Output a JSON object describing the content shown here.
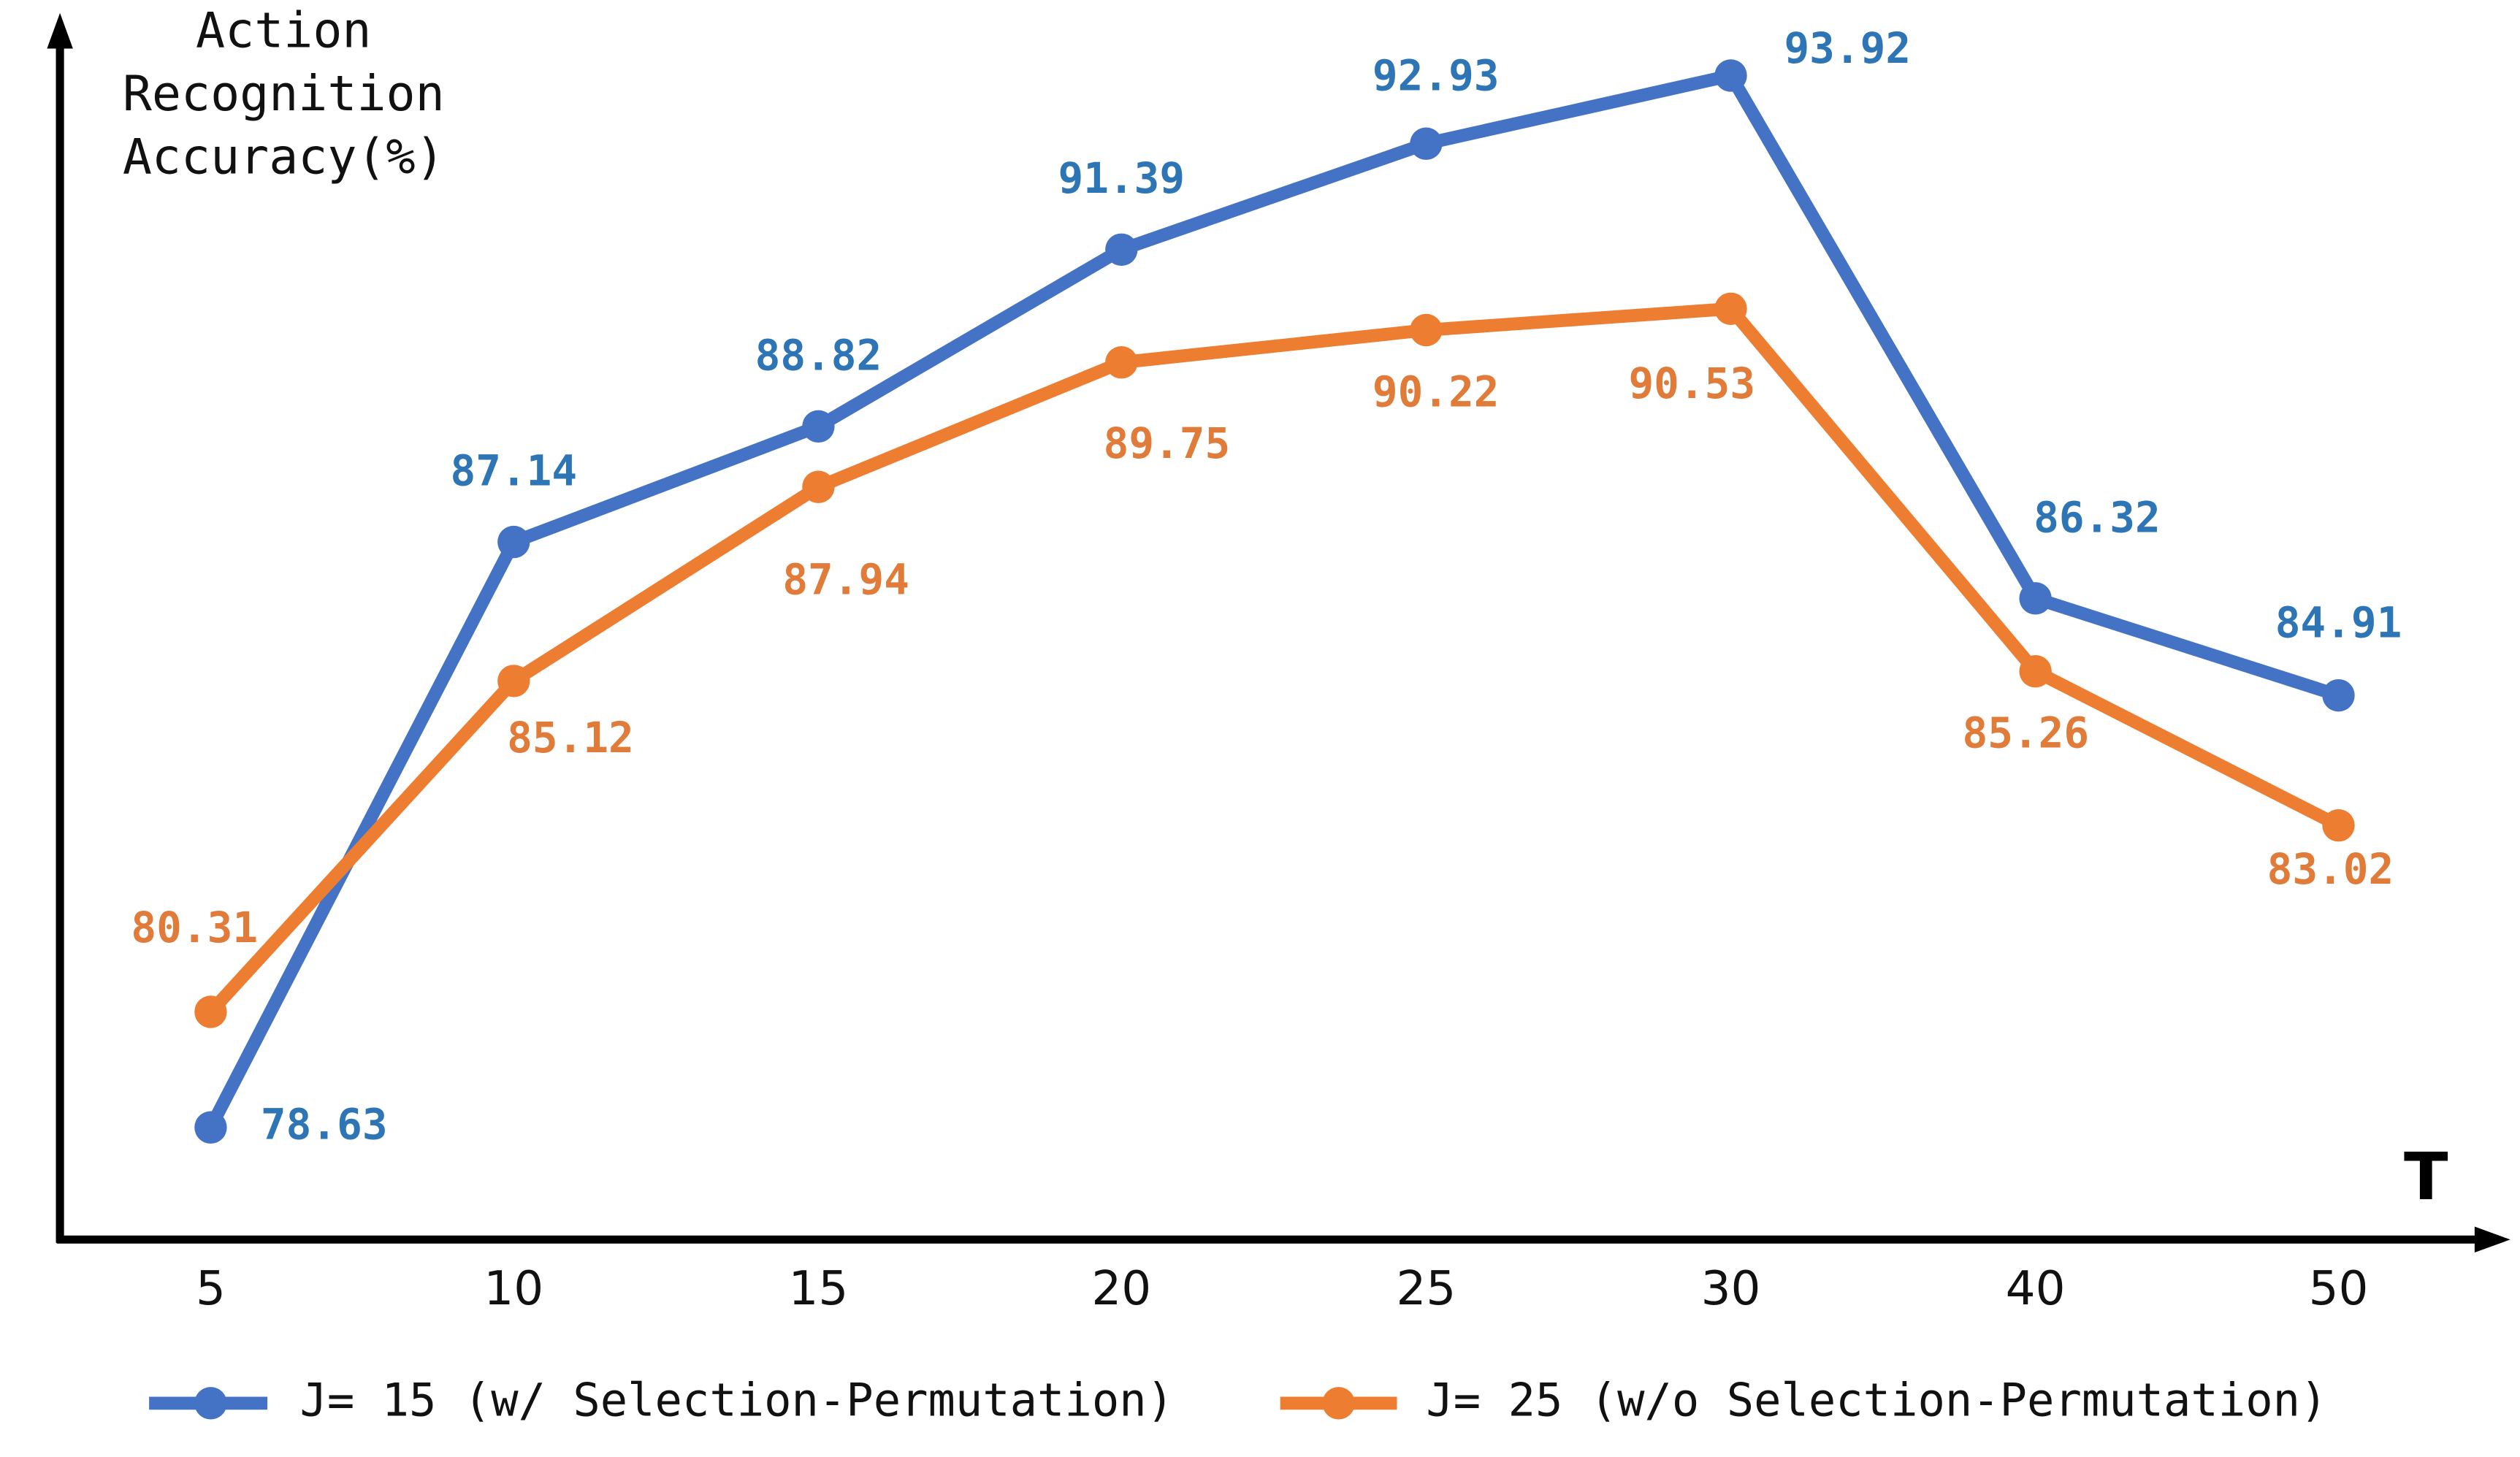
{
  "chart_data": {
    "type": "line",
    "y_label": "Action Recognition Accuracy(%)",
    "x_label": "T",
    "categories": [
      "5",
      "10",
      "15",
      "20",
      "25",
      "30",
      "40",
      "50"
    ],
    "series": [
      {
        "name": "J= 15 (w/ Selection-Permutation)",
        "color": "#4472c4",
        "label_color": "#2e75b6",
        "values": [
          78.63,
          87.14,
          88.82,
          91.39,
          92.93,
          93.92,
          86.32,
          84.91
        ]
      },
      {
        "name": "J= 25 (w/o Selection-Permutation)",
        "color": "#ed7d31",
        "label_color": "#e07b39",
        "values": [
          80.31,
          85.12,
          87.94,
          89.75,
          90.22,
          90.53,
          85.26,
          83.02
        ]
      }
    ],
    "ylim": [
      77,
      94.5
    ],
    "legend": "bottom"
  }
}
